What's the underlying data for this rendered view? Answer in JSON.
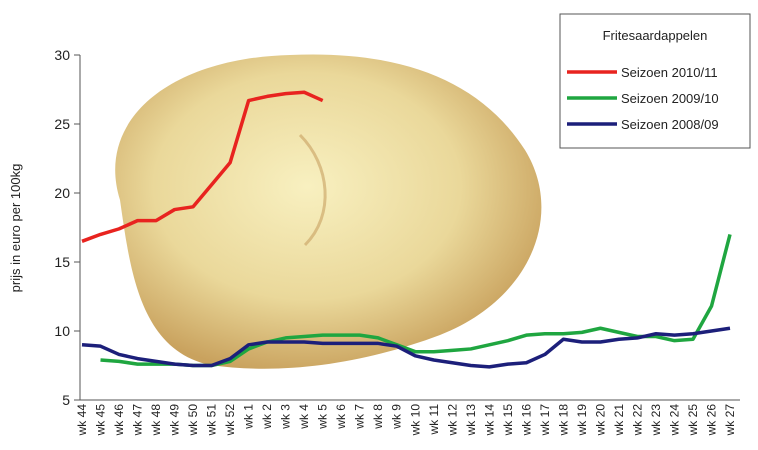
{
  "chart_data": {
    "type": "line",
    "legend_title": "Fritesaardappelen",
    "y_label": "prijs in euro per 100kg",
    "categories": [
      "wk 44",
      "wk 45",
      "wk 46",
      "wk 47",
      "wk 48",
      "wk 49",
      "wk 50",
      "wk 51",
      "wk 52",
      "wk 1",
      "wk 2",
      "wk 3",
      "wk 4",
      "wk 5",
      "wk 6",
      "wk 7",
      "wk 8",
      "wk 9",
      "wk 10",
      "wk 11",
      "wk 12",
      "wk 13",
      "wk 14",
      "wk 15",
      "wk 16",
      "wk 17",
      "wk 18",
      "wk 19",
      "wk 20",
      "wk 21",
      "wk 22",
      "wk 23",
      "wk 24",
      "wk 25",
      "wk 26",
      "wk 27"
    ],
    "series": [
      {
        "name": "Seizoen 2010/11",
        "color": "#e8231f",
        "values": [
          16.5,
          17,
          17.4,
          18,
          18,
          18.8,
          19,
          20.6,
          22.2,
          26.7,
          27,
          27.2,
          27.3,
          26.7,
          null,
          null,
          null,
          null,
          null,
          null,
          null,
          null,
          null,
          null,
          null,
          null,
          null,
          null,
          null,
          null,
          null,
          null,
          null,
          null,
          null,
          null
        ]
      },
      {
        "name": "Seizoen 2009/10",
        "color": "#1fa640",
        "values": [
          null,
          7.9,
          7.8,
          7.6,
          7.6,
          7.6,
          7.5,
          7.5,
          7.8,
          8.7,
          9.2,
          9.5,
          9.6,
          9.7,
          9.7,
          9.7,
          9.5,
          9.0,
          8.5,
          8.5,
          8.6,
          8.7,
          9.0,
          9.3,
          9.7,
          9.8,
          9.8,
          9.9,
          10.2,
          9.9,
          9.6,
          9.6,
          9.3,
          9.4,
          11.8,
          17
        ]
      },
      {
        "name": "Seizoen 2008/09",
        "color": "#1c1f7a",
        "values": [
          9.0,
          8.9,
          8.3,
          8.0,
          7.8,
          7.6,
          7.5,
          7.5,
          8.0,
          9.0,
          9.2,
          9.2,
          9.2,
          9.1,
          9.1,
          9.1,
          9.1,
          8.9,
          8.2,
          7.9,
          7.7,
          7.5,
          7.4,
          7.6,
          7.7,
          8.3,
          9.4,
          9.2,
          9.2,
          9.4,
          9.5,
          9.8,
          9.7,
          9.8,
          10.0,
          10.2
        ]
      }
    ],
    "ylim": [
      5,
      30
    ],
    "yticks": [
      5,
      10,
      15,
      20,
      25,
      30
    ],
    "legend": "upper right"
  }
}
